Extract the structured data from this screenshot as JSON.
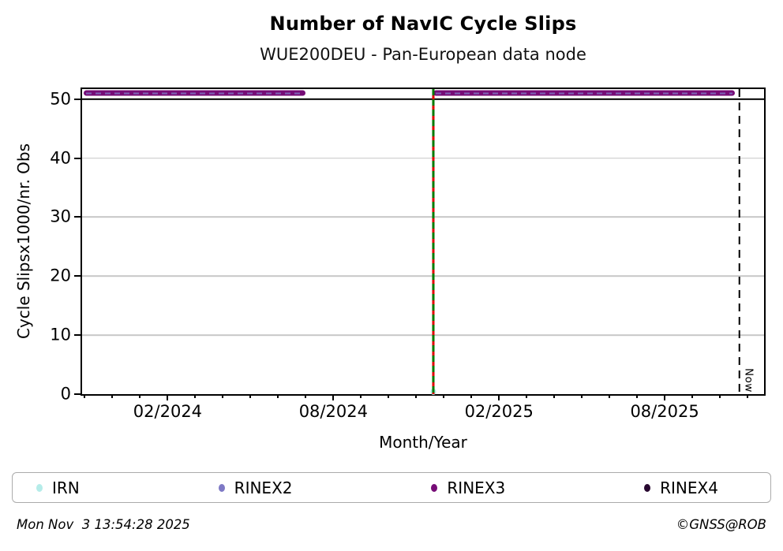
{
  "header": {
    "title": "Number of NavIC Cycle Slips",
    "subtitle": "WUE200DEU - Pan-European data node"
  },
  "footer": {
    "timestamp": "Mon Nov  3 13:54:28 2025",
    "credit": "©GNSS@ROB"
  },
  "legend": {
    "items": [
      {
        "label": "IRN",
        "color": "#b5ece9"
      },
      {
        "label": "RINEX2",
        "color": "#7e79c5"
      },
      {
        "label": "RINEX3",
        "color": "#760c76"
      },
      {
        "label": "RINEX4",
        "color": "#280830"
      }
    ]
  },
  "chart_data": {
    "type": "line",
    "title": "Number of NavIC Cycle Slips",
    "subtitle": "WUE200DEU - Pan-European data node",
    "xlabel": "Month/Year",
    "ylabel": "Cycle Slipsx1000/nr. Obs",
    "ylim": [
      0,
      51.7
    ],
    "grid": "horizontal-only",
    "legend_position": "bottom",
    "yticks": [
      {
        "value": 0,
        "label": "0"
      },
      {
        "value": 10,
        "label": "10"
      },
      {
        "value": 20,
        "label": "20"
      },
      {
        "value": 30,
        "label": "30"
      },
      {
        "value": 40,
        "label": "40"
      },
      {
        "value": 50,
        "label": "50"
      }
    ],
    "gridlines": [
      {
        "y": 10,
        "color": "#c7c7c7",
        "weight": "minor"
      },
      {
        "y": 20,
        "color": "#c7c7c7",
        "weight": "minor"
      },
      {
        "y": 30,
        "color": "#c7c7c7",
        "weight": "minor"
      },
      {
        "y": 40,
        "color": "#c7c7c7",
        "weight": "minor"
      },
      {
        "y": 50,
        "color": "#000000",
        "weight": "major"
      }
    ],
    "x_axis": {
      "unit": "months since 2023-11",
      "min": -0.1,
      "max": 24.6,
      "minor_tick_from": 0,
      "minor_tick_to": 24,
      "major_ticks": [
        {
          "m": 3,
          "label": "02/2024"
        },
        {
          "m": 9,
          "label": "08/2024"
        },
        {
          "m": 15,
          "label": "02/2025"
        },
        {
          "m": 21,
          "label": "08/2025"
        }
      ]
    },
    "series": [
      {
        "name": "IRN",
        "color": "#b5ece9",
        "points": [
          {
            "x": 12.62,
            "y": 0.4
          }
        ]
      },
      {
        "name": "RINEX2",
        "color": "#7e79c5",
        "role": "dash-overlay-on-RINEX3"
      },
      {
        "name": "RINEX3",
        "color": "#760c76",
        "y": 51,
        "segments": [
          [
            -0.05,
            8.0
          ],
          [
            12.62,
            23.55
          ]
        ],
        "dash_overlay": "RINEX2"
      },
      {
        "name": "RINEX4",
        "color": "#280830",
        "segments": []
      }
    ],
    "annotations": {
      "event_line": {
        "x": 12.62,
        "base_color": "#007a00",
        "dash_color": "#e00000"
      },
      "now_line": {
        "x": 23.7,
        "color": "#000000",
        "label": "Now"
      }
    }
  }
}
